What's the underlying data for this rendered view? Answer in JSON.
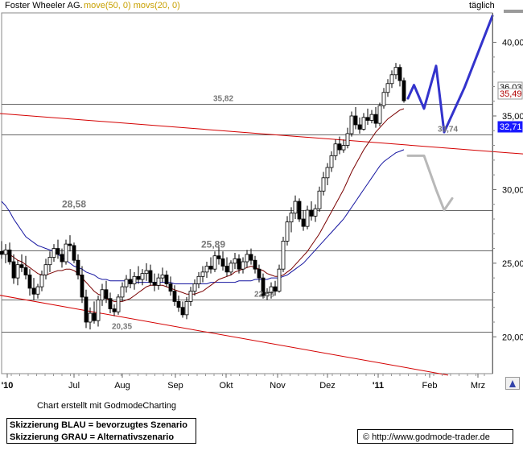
{
  "header": {
    "title": "Foster Wheeler AG.",
    "ma_labels": "move(50, 0) movs(20, 0)",
    "ma_color": "#c8a000",
    "interval": "täglich"
  },
  "footer": {
    "credit": "Chart erstellt mit GodmodeCharting",
    "legend_line1": "Skizzierung BLAU = bevorzugtes Szenario",
    "legend_line2": "Skizzierung GRAU = Alternativszenario",
    "url": "© http://www.godmode-trader.de"
  },
  "chart_data": {
    "type": "candlestick",
    "x_tick_labels": [
      "'10",
      "Jul",
      "Aug",
      "Sep",
      "Okt",
      "Nov",
      "Dez",
      "'11",
      "Feb",
      "Mrz"
    ],
    "y_tick_labels": [
      "40,00",
      "35,00",
      "30,00",
      "25,00",
      "20,00"
    ],
    "ylim": [
      17.5,
      42
    ],
    "price_tags": [
      {
        "text": "36,03",
        "value": 36.03,
        "bg": "#ffffff",
        "fg": "#000000"
      },
      {
        "text": "35,49",
        "value": 35.49,
        "bg": "#ffffff",
        "fg": "#b00000"
      },
      {
        "text": "32,71",
        "value": 32.71,
        "bg": "#1a1aff",
        "fg": "#ffffff"
      }
    ],
    "horizontal_levels": [
      {
        "value": 35.82,
        "label": "35,82"
      },
      {
        "value": 33.74,
        "label": "33,74"
      },
      {
        "value": 28.58,
        "label": "28,58"
      },
      {
        "value": 25.89,
        "label": "25,89"
      },
      {
        "value": 22.53,
        "label": "22,53"
      },
      {
        "value": 20.35,
        "label": "20,35"
      }
    ],
    "candles": [
      [
        25.8,
        26.5,
        25.3,
        25.6
      ],
      [
        25.6,
        26.3,
        25.0,
        25.9
      ],
      [
        25.9,
        26.4,
        24.9,
        25.1
      ],
      [
        25.1,
        25.6,
        23.6,
        24.0
      ],
      [
        24.0,
        25.2,
        23.5,
        24.9
      ],
      [
        24.9,
        25.6,
        24.4,
        24.7
      ],
      [
        24.7,
        25.5,
        23.9,
        24.2
      ],
      [
        24.2,
        24.6,
        22.8,
        23.3
      ],
      [
        23.3,
        24.0,
        22.5,
        22.9
      ],
      [
        22.9,
        23.6,
        22.6,
        23.4
      ],
      [
        23.4,
        24.5,
        23.1,
        24.2
      ],
      [
        24.2,
        25.3,
        23.9,
        24.9
      ],
      [
        24.9,
        25.8,
        24.4,
        25.4
      ],
      [
        25.4,
        26.3,
        25.1,
        26.0
      ],
      [
        26.0,
        26.6,
        25.3,
        25.6
      ],
      [
        25.6,
        26.0,
        24.7,
        25.1
      ],
      [
        25.1,
        26.6,
        24.9,
        26.3
      ],
      [
        26.3,
        26.9,
        25.8,
        26.2
      ],
      [
        26.2,
        26.4,
        25.0,
        25.2
      ],
      [
        25.2,
        25.6,
        23.9,
        24.2
      ],
      [
        24.2,
        24.8,
        22.3,
        22.7
      ],
      [
        22.7,
        23.2,
        20.6,
        21.0
      ],
      [
        21.0,
        22.0,
        20.5,
        21.6
      ],
      [
        21.6,
        22.4,
        20.9,
        21.1
      ],
      [
        21.1,
        22.8,
        20.7,
        22.5
      ],
      [
        22.5,
        23.6,
        22.1,
        23.2
      ],
      [
        23.2,
        23.8,
        22.3,
        22.6
      ],
      [
        22.6,
        23.0,
        21.6,
        21.9
      ],
      [
        21.9,
        22.2,
        21.4,
        21.7
      ],
      [
        21.7,
        22.9,
        21.5,
        22.7
      ],
      [
        22.7,
        23.7,
        22.4,
        23.4
      ],
      [
        23.4,
        24.2,
        23.0,
        23.9
      ],
      [
        23.9,
        24.6,
        23.3,
        23.6
      ],
      [
        23.6,
        24.4,
        23.2,
        24.1
      ],
      [
        24.1,
        24.8,
        23.6,
        23.9
      ],
      [
        23.9,
        24.6,
        23.5,
        24.3
      ],
      [
        24.3,
        25.0,
        23.8,
        24.5
      ],
      [
        24.5,
        24.9,
        23.5,
        23.7
      ],
      [
        23.7,
        24.3,
        23.1,
        23.5
      ],
      [
        23.5,
        24.3,
        23.2,
        24.0
      ],
      [
        24.0,
        24.7,
        23.7,
        24.2
      ],
      [
        24.2,
        24.5,
        23.4,
        23.6
      ],
      [
        23.6,
        24.1,
        22.8,
        23.1
      ],
      [
        23.1,
        23.5,
        22.1,
        22.4
      ],
      [
        22.4,
        22.8,
        21.7,
        22.0
      ],
      [
        22.0,
        22.4,
        21.3,
        21.5
      ],
      [
        21.5,
        22.7,
        21.2,
        22.4
      ],
      [
        22.4,
        23.4,
        22.1,
        23.1
      ],
      [
        23.1,
        23.9,
        22.8,
        23.6
      ],
      [
        23.6,
        24.4,
        23.3,
        24.1
      ],
      [
        24.1,
        24.8,
        23.7,
        24.4
      ],
      [
        24.4,
        25.1,
        24.0,
        24.8
      ],
      [
        24.8,
        25.4,
        24.3,
        24.6
      ],
      [
        24.6,
        25.8,
        24.4,
        25.5
      ],
      [
        25.5,
        26.1,
        24.9,
        25.3
      ],
      [
        25.3,
        25.8,
        24.5,
        24.8
      ],
      [
        24.8,
        25.4,
        24.1,
        24.4
      ],
      [
        24.4,
        25.2,
        24.2,
        25.0
      ],
      [
        25.0,
        25.7,
        24.6,
        25.3
      ],
      [
        25.3,
        25.6,
        24.3,
        24.6
      ],
      [
        24.6,
        25.4,
        24.3,
        25.1
      ],
      [
        25.1,
        25.9,
        24.7,
        25.6
      ],
      [
        25.6,
        26.0,
        24.9,
        25.2
      ],
      [
        25.2,
        25.5,
        24.3,
        24.6
      ],
      [
        24.6,
        24.9,
        23.7,
        24.0
      ],
      [
        24.0,
        24.3,
        22.6,
        22.8
      ],
      [
        22.8,
        23.3,
        22.5,
        23.0
      ],
      [
        23.0,
        23.7,
        22.6,
        23.4
      ],
      [
        23.4,
        23.8,
        22.8,
        23.1
      ],
      [
        23.1,
        24.9,
        23.0,
        24.6
      ],
      [
        24.6,
        26.8,
        24.4,
        26.5
      ],
      [
        26.5,
        28.2,
        26.2,
        27.8
      ],
      [
        27.8,
        28.8,
        27.1,
        28.4
      ],
      [
        28.4,
        29.6,
        28.0,
        29.2
      ],
      [
        29.2,
        29.4,
        27.8,
        28.0
      ],
      [
        28.0,
        28.6,
        27.2,
        27.5
      ],
      [
        27.5,
        28.9,
        27.3,
        28.6
      ],
      [
        28.6,
        29.2,
        27.9,
        28.2
      ],
      [
        28.2,
        29.0,
        27.8,
        28.7
      ],
      [
        28.7,
        30.2,
        28.5,
        29.9
      ],
      [
        29.9,
        31.2,
        29.6,
        30.8
      ],
      [
        30.8,
        31.8,
        30.3,
        31.5
      ],
      [
        31.5,
        32.6,
        31.2,
        32.3
      ],
      [
        32.3,
        33.4,
        32.0,
        33.1
      ],
      [
        33.1,
        33.6,
        32.4,
        32.7
      ],
      [
        32.7,
        33.4,
        32.5,
        33.0
      ],
      [
        33.0,
        34.2,
        32.8,
        33.8
      ],
      [
        33.8,
        35.3,
        33.6,
        35.0
      ],
      [
        35.0,
        35.6,
        34.1,
        34.4
      ],
      [
        34.4,
        34.9,
        33.8,
        34.1
      ],
      [
        34.1,
        35.2,
        34.0,
        34.9
      ],
      [
        34.9,
        35.5,
        34.4,
        34.7
      ],
      [
        34.7,
        35.4,
        34.5,
        35.1
      ],
      [
        35.1,
        35.6,
        34.2,
        34.5
      ],
      [
        34.5,
        35.9,
        34.3,
        35.7
      ],
      [
        35.7,
        36.9,
        35.5,
        36.6
      ],
      [
        36.6,
        37.5,
        36.3,
        37.2
      ],
      [
        37.2,
        38.1,
        36.9,
        37.8
      ],
      [
        37.8,
        38.6,
        37.5,
        38.3
      ],
      [
        38.3,
        38.5,
        37.0,
        37.4
      ],
      [
        37.4,
        37.6,
        35.9,
        36.03
      ]
    ],
    "series": [
      {
        "name": "move(50, 0)",
        "values": [
          29.2,
          28.9,
          28.5,
          28.0,
          27.6,
          27.2,
          26.8,
          26.6,
          26.4,
          26.2,
          26.1,
          26.0,
          25.9,
          25.8,
          25.6,
          25.4,
          25.2,
          25.0,
          24.8,
          24.7,
          24.6,
          24.4,
          24.3,
          24.2,
          24.0,
          23.9,
          23.9,
          23.8,
          23.8,
          23.8,
          23.8,
          23.8,
          23.8,
          23.7,
          23.7,
          23.7,
          23.7,
          23.7,
          23.7,
          23.7,
          23.7,
          23.7,
          23.7,
          23.6,
          23.6,
          23.6,
          23.6,
          23.6,
          23.6,
          23.6,
          23.6,
          23.6,
          23.7,
          23.7,
          23.7,
          23.7,
          23.7,
          23.7,
          23.7,
          23.8,
          23.8,
          23.8,
          23.8,
          23.9,
          23.9,
          23.9,
          23.9,
          24.0,
          24.0,
          24.0,
          24.1,
          24.2,
          24.4,
          24.6,
          24.8,
          25.0,
          25.3,
          25.6,
          25.9,
          26.2,
          26.5,
          26.8,
          27.1,
          27.4,
          27.7,
          28.0,
          28.4,
          28.8,
          29.2,
          29.6,
          30.0,
          30.4,
          30.8,
          31.2,
          31.6,
          31.9,
          32.1,
          32.3,
          32.5,
          32.6,
          32.71
        ]
      },
      {
        "name": "movs(20, 0)",
        "values": [
          25.8,
          25.7,
          25.6,
          25.4,
          25.2,
          25.1,
          24.9,
          24.7,
          24.5,
          24.3,
          24.2,
          24.2,
          24.3,
          24.4,
          24.5,
          24.5,
          24.6,
          24.6,
          24.5,
          24.3,
          24.0,
          23.7,
          23.4,
          23.1,
          22.9,
          22.8,
          22.6,
          22.5,
          22.4,
          22.4,
          22.4,
          22.5,
          22.6,
          22.8,
          23.0,
          23.2,
          23.4,
          23.5,
          23.5,
          23.5,
          23.5,
          23.4,
          23.3,
          23.2,
          23.1,
          23.0,
          22.9,
          22.9,
          22.9,
          23.0,
          23.1,
          23.3,
          23.5,
          23.7,
          23.9,
          24.0,
          24.1,
          24.2,
          24.4,
          24.5,
          24.6,
          24.7,
          24.8,
          24.7,
          24.6,
          24.5,
          24.3,
          24.2,
          24.1,
          24.1,
          24.2,
          24.4,
          24.6,
          24.9,
          25.2,
          25.5,
          25.8,
          26.2,
          26.6,
          27.0,
          27.5,
          28.0,
          28.5,
          29.0,
          29.5,
          30.0,
          30.6,
          31.2,
          31.7,
          32.2,
          32.7,
          33.1,
          33.5,
          33.9,
          34.2,
          34.5,
          34.8,
          35.0,
          35.2,
          35.4,
          35.49
        ]
      }
    ],
    "trendlines": [
      {
        "color": "#d40000",
        "from": [
          -2,
          35.2
        ],
        "to": [
          140,
          32.2
        ]
      },
      {
        "color": "#d40000",
        "from": [
          -2,
          22.9
        ],
        "to": [
          111,
          17.4
        ]
      }
    ],
    "scenarios": [
      {
        "name": "BLAU",
        "color": "#3333cc",
        "points": [
          [
            101,
            36.2
          ],
          [
            102.5,
            37.1
          ],
          [
            105,
            35.5
          ],
          [
            108,
            38.4
          ],
          [
            110,
            33.9
          ],
          [
            115,
            36.9
          ],
          [
            122,
            41.8
          ]
        ]
      },
      {
        "name": "GRAU",
        "color": "#b8b8b8",
        "points": [
          [
            101,
            32.3
          ],
          [
            105,
            32.3
          ],
          [
            108,
            30.0
          ],
          [
            110,
            28.6
          ],
          [
            112,
            29.4
          ]
        ]
      }
    ]
  }
}
